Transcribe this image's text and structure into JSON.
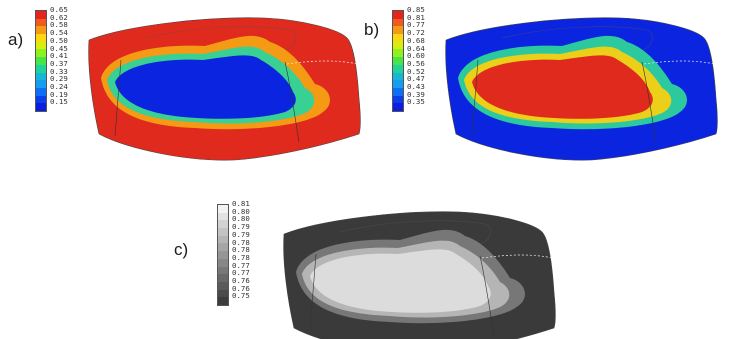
{
  "panels": [
    {
      "label": "a)",
      "legend": [
        "0.65",
        "0.62",
        "0.58",
        "0.54",
        "0.50",
        "0.45",
        "0.41",
        "0.37",
        "0.33",
        "0.29",
        "0.24",
        "0.19",
        "0.15"
      ],
      "colors": [
        "#e8221c",
        "#f05a1a",
        "#f59a16",
        "#fbd80f",
        "#d6ef10",
        "#8ff21f",
        "#48e54a",
        "#1fd39a",
        "#16b6d4",
        "#139ef0",
        "#0f6ef5",
        "#0a3ee8",
        "#0b1de0"
      ],
      "field": {
        "outer": "#e02a1d",
        "ring1": "#f5a014",
        "ring2": "#2ed39a",
        "core": "#0a24e0"
      }
    },
    {
      "label": "b)",
      "legend": [
        "0.85",
        "0.81",
        "0.77",
        "0.72",
        "0.68",
        "0.64",
        "0.60",
        "0.56",
        "0.52",
        "0.47",
        "0.43",
        "0.39",
        "0.35"
      ],
      "colors": [
        "#e8221c",
        "#f05a1a",
        "#f59a16",
        "#fbd80f",
        "#d6ef10",
        "#8ff21f",
        "#48e54a",
        "#1fd39a",
        "#16b6d4",
        "#139ef0",
        "#0f6ef5",
        "#0a3ee8",
        "#0b1de0"
      ],
      "field": {
        "outer": "#0a24e0",
        "ring1": "#2ed39a",
        "ring2": "#f5d012",
        "core": "#e02a1d"
      }
    },
    {
      "label": "c)",
      "legend": [
        "0.81",
        "0.80",
        "0.80",
        "0.79",
        "0.79",
        "0.78",
        "0.78",
        "0.78",
        "0.77",
        "0.77",
        "0.76",
        "0.76",
        "0.75"
      ],
      "colors": [
        "#f2f2f2",
        "#e2e2e2",
        "#d2d2d2",
        "#c3c3c3",
        "#b4b4b4",
        "#a5a5a5",
        "#969696",
        "#878787",
        "#787878",
        "#696969",
        "#5a5a5a",
        "#4b4b4b",
        "#3c3c3c"
      ],
      "field": {
        "outer": "#3a3a3a",
        "ring1": "#7a7a7a",
        "ring2": "#b8b8b8",
        "core": "#dcdcdc"
      }
    }
  ]
}
